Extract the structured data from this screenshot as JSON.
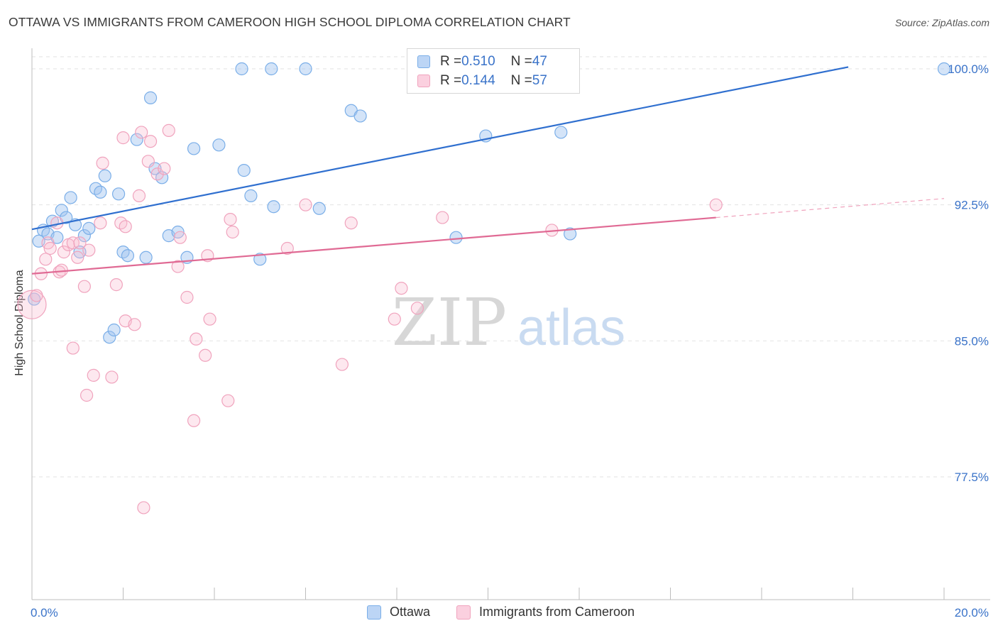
{
  "title": "OTTAWA VS IMMIGRANTS FROM CAMEROON HIGH SCHOOL DIPLOMA CORRELATION CHART",
  "source": "Source: ZipAtlas.com",
  "watermark": {
    "zip": "ZIP",
    "atlas": "atlas"
  },
  "legend": {
    "rows": [
      {
        "r_label": "R = ",
        "r_value": "0.510",
        "n_label": "N = ",
        "n_value": "47"
      },
      {
        "r_label": "R = ",
        "r_value": "0.144",
        "n_label": "N = ",
        "n_value": "57"
      }
    ]
  },
  "chart_data": {
    "type": "scatter",
    "title": "OTTAWA VS IMMIGRANTS FROM CAMEROON HIGH SCHOOL DIPLOMA CORRELATION CHART",
    "xlabel": "",
    "ylabel": "High School Diploma",
    "xlim": [
      0,
      20
    ],
    "ylim": [
      71.0,
      101.5
    ],
    "x_tick_labels": [
      "0.0%",
      "20.0%"
    ],
    "y_tick_labels": [
      "100.0%",
      "92.5%",
      "85.0%",
      "77.5%"
    ],
    "y_ticks": [
      100.0,
      92.5,
      85.0,
      77.5
    ],
    "grid": "horizontal dashed",
    "legend_position": "bottom-center",
    "colors": {
      "ottawa": "#7aaee8",
      "ottawa_line": "#2f6fcf",
      "cameroon": "#f0a3bd",
      "cameroon_line": "#e06a94",
      "tick_label": "#3a73c9"
    },
    "series": [
      {
        "name": "Ottawa",
        "r": 0.51,
        "n": 47,
        "trend": {
          "x": [
            0.0,
            17.9
          ],
          "y": [
            91.15,
            100.1
          ]
        },
        "points": [
          [
            0.05,
            87.3
          ],
          [
            0.15,
            90.5
          ],
          [
            0.25,
            91.1
          ],
          [
            0.35,
            90.9
          ],
          [
            0.45,
            91.6
          ],
          [
            0.55,
            90.7
          ],
          [
            0.65,
            92.2
          ],
          [
            0.75,
            91.8
          ],
          [
            0.85,
            92.9
          ],
          [
            0.95,
            91.4
          ],
          [
            1.05,
            89.9
          ],
          [
            1.15,
            90.8
          ],
          [
            1.25,
            91.2
          ],
          [
            1.4,
            93.4
          ],
          [
            1.5,
            93.2
          ],
          [
            1.6,
            94.1
          ],
          [
            1.7,
            85.2
          ],
          [
            1.8,
            85.6
          ],
          [
            1.9,
            93.1
          ],
          [
            2.0,
            89.9
          ],
          [
            2.1,
            89.7
          ],
          [
            2.3,
            96.1
          ],
          [
            2.5,
            89.6
          ],
          [
            2.6,
            98.4
          ],
          [
            2.7,
            94.5
          ],
          [
            2.85,
            94.0
          ],
          [
            3.0,
            90.8
          ],
          [
            3.2,
            91.0
          ],
          [
            3.4,
            89.6
          ],
          [
            3.55,
            95.6
          ],
          [
            4.1,
            95.8
          ],
          [
            4.6,
            100.0
          ],
          [
            4.65,
            94.4
          ],
          [
            4.8,
            93.0
          ],
          [
            5.0,
            89.5
          ],
          [
            5.25,
            100.0
          ],
          [
            5.3,
            92.4
          ],
          [
            6.0,
            100.0
          ],
          [
            6.3,
            92.3
          ],
          [
            7.0,
            97.7
          ],
          [
            7.2,
            97.4
          ],
          [
            8.4,
            100.0
          ],
          [
            9.3,
            90.7
          ],
          [
            9.95,
            96.3
          ],
          [
            11.6,
            96.5
          ],
          [
            11.8,
            90.9
          ],
          [
            20.0,
            100.0
          ]
        ]
      },
      {
        "name": "Immigrants from Cameroon",
        "r": 0.144,
        "n": 57,
        "trend": {
          "x": [
            0.0,
            15.0
          ],
          "y": [
            88.7,
            91.8
          ]
        },
        "trend_dashed": {
          "x": [
            15.0,
            20.0
          ],
          "y": [
            91.8,
            92.85
          ]
        },
        "points": [
          [
            0.0,
            87.0
          ],
          [
            0.1,
            87.5
          ],
          [
            0.2,
            88.7
          ],
          [
            0.3,
            89.5
          ],
          [
            0.35,
            90.4
          ],
          [
            0.4,
            90.1
          ],
          [
            0.55,
            91.5
          ],
          [
            0.6,
            88.8
          ],
          [
            0.65,
            88.9
          ],
          [
            0.7,
            89.9
          ],
          [
            0.8,
            90.3
          ],
          [
            0.9,
            90.4
          ],
          [
            0.9,
            84.6
          ],
          [
            1.0,
            89.6
          ],
          [
            1.05,
            90.4
          ],
          [
            1.15,
            88.0
          ],
          [
            1.2,
            82.0
          ],
          [
            1.25,
            90.0
          ],
          [
            1.35,
            83.1
          ],
          [
            1.5,
            91.5
          ],
          [
            1.55,
            94.8
          ],
          [
            1.75,
            83.0
          ],
          [
            1.85,
            88.1
          ],
          [
            1.95,
            91.5
          ],
          [
            2.0,
            96.2
          ],
          [
            2.05,
            91.3
          ],
          [
            2.05,
            86.1
          ],
          [
            2.25,
            85.9
          ],
          [
            2.35,
            93.0
          ],
          [
            2.4,
            96.5
          ],
          [
            2.45,
            75.8
          ],
          [
            2.55,
            94.9
          ],
          [
            2.6,
            96.0
          ],
          [
            2.75,
            94.2
          ],
          [
            2.9,
            94.5
          ],
          [
            3.0,
            96.6
          ],
          [
            3.2,
            89.1
          ],
          [
            3.25,
            90.7
          ],
          [
            3.4,
            87.4
          ],
          [
            3.55,
            80.6
          ],
          [
            3.6,
            85.1
          ],
          [
            3.8,
            84.2
          ],
          [
            3.85,
            89.7
          ],
          [
            3.9,
            86.2
          ],
          [
            4.3,
            81.7
          ],
          [
            4.35,
            91.7
          ],
          [
            4.4,
            91.0
          ],
          [
            5.6,
            90.1
          ],
          [
            6.0,
            92.5
          ],
          [
            6.8,
            83.7
          ],
          [
            7.0,
            91.5
          ],
          [
            7.95,
            86.2
          ],
          [
            8.1,
            87.9
          ],
          [
            8.45,
            86.8
          ],
          [
            9.0,
            91.8
          ],
          [
            11.4,
            91.1
          ],
          [
            15.0,
            92.5
          ]
        ]
      }
    ]
  },
  "bottom_legend": [
    {
      "label": "Ottawa"
    },
    {
      "label": "Immigrants from Cameroon"
    }
  ]
}
